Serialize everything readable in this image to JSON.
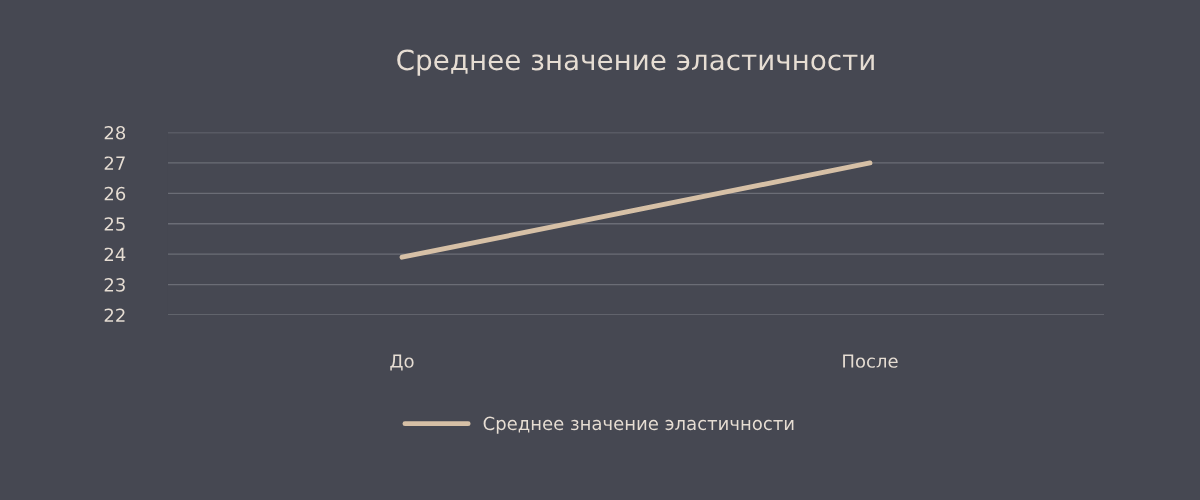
{
  "chart_data": {
    "type": "line",
    "title": "Среднее значение эластичности",
    "categories": [
      "До",
      "После"
    ],
    "series": [
      {
        "name": "Среднее значение эластичности",
        "color": "#d6c0a6",
        "values": [
          23.9,
          27
        ]
      }
    ],
    "ylim": [
      22,
      28
    ],
    "yticks": [
      22,
      23,
      24,
      25,
      26,
      27,
      28
    ],
    "grid": "y",
    "legend": "bottom",
    "marker": "none",
    "line_style": "solid"
  }
}
